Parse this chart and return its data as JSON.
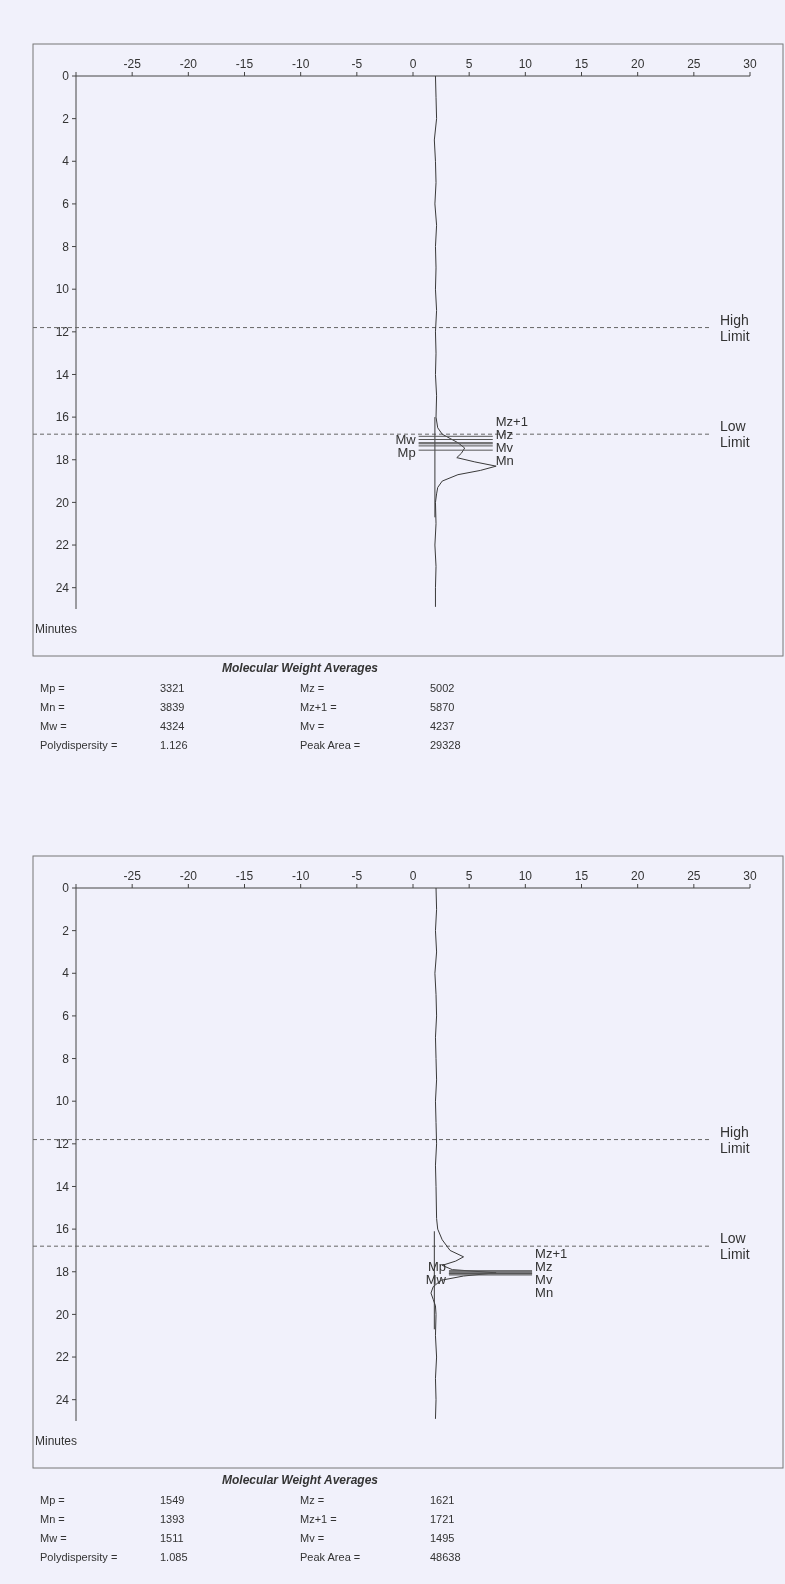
{
  "chart_data": [
    {
      "type": "line",
      "ylabel": "Minutes",
      "xlim": [
        -30,
        30
      ],
      "xticks": [
        {
          "value": -30,
          "label": null
        },
        -25,
        -20,
        -15,
        -10,
        -5,
        0,
        5,
        10,
        15,
        20,
        25,
        30
      ],
      "ylim": [
        25,
        0
      ],
      "yticks": [
        0,
        2,
        4,
        6,
        8,
        10,
        12,
        14,
        16,
        18,
        20,
        22,
        24
      ],
      "series": [
        {
          "color": "#3a3a3a",
          "x": [
            2.0,
            2.05,
            2.1,
            1.9,
            2.0,
            2.05,
            1.95,
            2.1,
            2.0,
            2.05,
            2.0,
            2.1,
            2.0,
            2.05,
            2.0,
            2.1,
            2.05,
            2.2,
            2.6,
            3.3,
            4.0,
            4.6,
            4.3,
            3.9,
            5.5,
            7.4,
            6.0,
            4.0,
            2.6,
            2.2,
            2.1,
            2.0,
            2.05,
            1.95,
            2.05,
            2.0,
            2.0
          ],
          "values": [
            0,
            1,
            2,
            3,
            4,
            5,
            6,
            7,
            8,
            9,
            10,
            11,
            12,
            13,
            14,
            15,
            16,
            16.5,
            16.8,
            17.0,
            17.2,
            17.45,
            17.7,
            17.9,
            18.1,
            18.3,
            18.5,
            18.7,
            19.0,
            19.3,
            19.6,
            20,
            21,
            22,
            23,
            24,
            24.9
          ]
        },
        {
          "color": "#3a3a3a",
          "x": [
            1.95,
            1.95
          ],
          "values": [
            16.0,
            20.7
          ]
        },
        {
          "color": "#555555",
          "x": [
            0.5,
            7.1
          ],
          "values": [
            16.9,
            16.9
          ]
        },
        {
          "color": "#555555",
          "x": [
            0.5,
            7.1
          ],
          "values": [
            17.05,
            17.05
          ]
        },
        {
          "color": "#555555",
          "x": [
            0.5,
            7.1
          ],
          "values": [
            17.2,
            17.2
          ]
        },
        {
          "color": "#555555",
          "x": [
            0.5,
            7.1
          ],
          "values": [
            17.25,
            17.25
          ]
        },
        {
          "color": "#555555",
          "x": [
            0.5,
            7.1
          ],
          "values": [
            17.35,
            17.35
          ]
        },
        {
          "color": "#555555",
          "x": [
            0.5,
            7.1
          ],
          "values": [
            17.55,
            17.55
          ]
        }
      ],
      "ref_lines": [
        {
          "axis": "y",
          "value": 11.8,
          "label": "High Limit",
          "color": "#666666",
          "line_style": "dashed"
        },
        {
          "axis": "y",
          "value": 16.8,
          "label": "Low Limit",
          "color": "#666666",
          "line_style": "dashed"
        }
      ],
      "annotations": [
        {
          "text": "Mz+1",
          "x": 7.1,
          "y": 16.9
        },
        {
          "text": "Mz",
          "x": 7.1,
          "y": 17.05
        },
        {
          "text": "Mv",
          "x": 7.1,
          "y": 17.25
        },
        {
          "text": "Mn",
          "x": 7.1,
          "y": 17.35
        },
        {
          "text": "Mw",
          "x": 0.5,
          "y": 17.2
        },
        {
          "text": "Mp",
          "x": 0.5,
          "y": 17.55
        },
        "Molecular Weight Averages",
        "Mp =",
        "3321",
        "Mz  =",
        "5002",
        "Mn =",
        "3839",
        "Mz+1 =",
        "5870",
        "Mw =",
        "4324",
        "Mv  =",
        "4237",
        "Polydispersity =",
        "1.126",
        "Peak Area =",
        "29328"
      ]
    },
    {
      "type": "line",
      "ylabel": "Minutes",
      "xlim": [
        -30,
        30
      ],
      "xticks": [
        {
          "value": -30,
          "label": null
        },
        -25,
        -20,
        -15,
        -10,
        -5,
        0,
        5,
        10,
        15,
        20,
        25,
        30
      ],
      "ylim": [
        25,
        0
      ],
      "yticks": [
        0,
        2,
        4,
        6,
        8,
        10,
        12,
        14,
        16,
        18,
        20,
        22,
        24
      ],
      "series": [
        {
          "color": "#3a3a3a",
          "x": [
            2.05,
            2.1,
            2.0,
            2.1,
            1.95,
            2.05,
            2.1,
            2.0,
            2.05,
            2.1,
            2.0,
            2.05,
            2.1,
            2.0,
            2.05,
            2.1,
            2.2,
            2.6,
            3.3,
            4.5,
            3.8,
            2.6,
            3.5,
            7.4,
            4.5,
            2.5,
            1.8,
            1.6,
            1.8,
            2.0,
            2.05,
            2.0,
            2.1,
            2.0,
            2.05,
            2.0
          ],
          "values": [
            0,
            1,
            2,
            3,
            4,
            5,
            6,
            7,
            8,
            9,
            10,
            11,
            12,
            13,
            14,
            15.5,
            16,
            16.5,
            17,
            17.3,
            17.5,
            17.7,
            17.9,
            18.05,
            18.2,
            18.4,
            18.7,
            19,
            19.3,
            19.6,
            20,
            21,
            22,
            23,
            24,
            24.9
          ]
        },
        {
          "color": "#3a3a3a",
          "x": [
            1.9,
            1.9
          ],
          "values": [
            16.1,
            20.7
          ]
        },
        {
          "color": "#555555",
          "x": [
            3.2,
            10.6
          ],
          "values": [
            17.95,
            17.95
          ]
        },
        {
          "color": "#555555",
          "x": [
            3.2,
            10.6
          ],
          "values": [
            18.0,
            18.0
          ]
        },
        {
          "color": "#555555",
          "x": [
            3.2,
            10.6
          ],
          "values": [
            18.05,
            18.05
          ]
        },
        {
          "color": "#555555",
          "x": [
            3.2,
            10.6
          ],
          "values": [
            18.08,
            18.08
          ]
        },
        {
          "color": "#555555",
          "x": [
            3.2,
            10.6
          ],
          "values": [
            18.1,
            18.1
          ]
        },
        {
          "color": "#555555",
          "x": [
            3.2,
            10.6
          ],
          "values": [
            18.15,
            18.15
          ]
        }
      ],
      "ref_lines": [
        {
          "axis": "y",
          "value": 11.8,
          "label": "High Limit",
          "color": "#666666",
          "line_style": "dashed"
        },
        {
          "axis": "y",
          "value": 16.8,
          "label": "Low Limit",
          "color": "#666666",
          "line_style": "dashed"
        }
      ],
      "annotations": [
        {
          "text": "Mz+1",
          "x": 10.6,
          "y": 17.95
        },
        {
          "text": "Mz",
          "x": 10.6,
          "y": 18.0
        },
        {
          "text": "Mv",
          "x": 10.6,
          "y": 18.1
        },
        {
          "text": "Mn",
          "x": 10.6,
          "y": 18.15
        },
        {
          "text": "Mw",
          "x": 3.2,
          "y": 18.08
        },
        {
          "text": "Mp",
          "x": 3.2,
          "y": 18.05
        },
        "Molecular Weight Averages",
        "Mp =",
        "1549",
        "Mz  =",
        "1621",
        "Mn =",
        "1393",
        "Mz+1 =",
        "1721",
        "Mw =",
        "1511",
        "Mv  =",
        "1495",
        "Polydispersity =",
        "1.085",
        "Peak Area =",
        "48638"
      ]
    }
  ]
}
